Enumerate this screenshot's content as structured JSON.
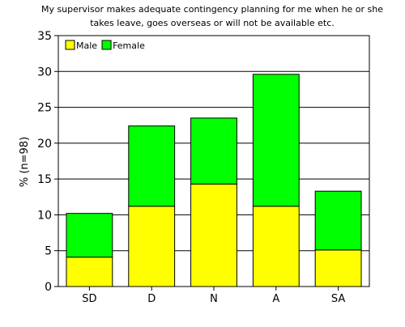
{
  "chart_data": {
    "type": "bar",
    "stacked": true,
    "title": "My supervisor makes adequate contingency planning for me when he or she takes leave, goes overseas or will not be available etc.",
    "title_lines": [
      "My supervisor makes adequate contingency planning for me when he or she",
      "takes leave, goes overseas or will not be available etc."
    ],
    "xlabel": "",
    "ylabel": "% (n=98)",
    "ylim": [
      0,
      35
    ],
    "yticks": [
      0,
      5,
      10,
      15,
      20,
      25,
      30,
      35
    ],
    "grid": true,
    "legend_position": "top-left",
    "categories": [
      "SD",
      "D",
      "N",
      "A",
      "SA"
    ],
    "series": [
      {
        "name": "Male",
        "color": "#ffff00",
        "values": [
          4.1,
          11.2,
          14.3,
          11.2,
          5.1
        ]
      },
      {
        "name": "Female",
        "color": "#00ff00",
        "values": [
          6.1,
          11.2,
          9.2,
          18.4,
          8.2
        ]
      }
    ]
  }
}
